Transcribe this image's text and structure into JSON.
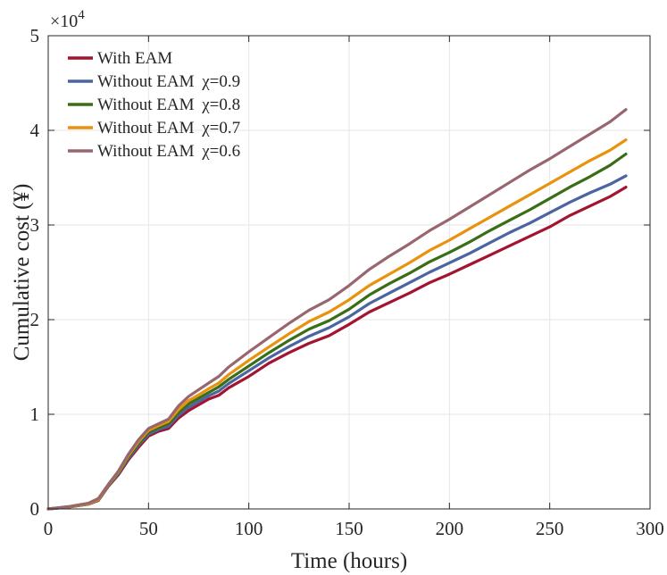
{
  "chart_data": {
    "type": "line",
    "title": "",
    "xlabel": "Time (hours)",
    "ylabel": "Cumulative cost (¥)",
    "xlim": [
      0,
      300
    ],
    "ylim": [
      0,
      50000
    ],
    "xticks": [
      0,
      50,
      100,
      150,
      200,
      250,
      300
    ],
    "xtick_labels": [
      "0",
      "50",
      "100",
      "150",
      "200",
      "250",
      "300"
    ],
    "yticks": [
      0,
      10000,
      20000,
      30000,
      40000,
      50000
    ],
    "ytick_labels": [
      "0",
      "1",
      "2",
      "3",
      "4",
      "5"
    ],
    "y_exponent_label": "×10",
    "y_exponent_power": "4",
    "grid": true,
    "legend_position": "top-left",
    "series": [
      {
        "name": "With EAM",
        "legend_prefix": "With EAM",
        "legend_chi": "",
        "color": "#A2142F",
        "x": [
          0,
          10,
          20,
          25,
          30,
          35,
          40,
          45,
          50,
          55,
          60,
          65,
          70,
          75,
          80,
          85,
          90,
          100,
          110,
          120,
          130,
          140,
          150,
          160,
          170,
          180,
          190,
          200,
          210,
          220,
          230,
          240,
          250,
          260,
          270,
          280,
          288
        ],
        "y": [
          0,
          200,
          500,
          900,
          2400,
          3600,
          5200,
          6500,
          7700,
          8200,
          8500,
          9600,
          10400,
          11000,
          11600,
          12000,
          12800,
          14000,
          15400,
          16500,
          17500,
          18300,
          19500,
          20800,
          21800,
          22800,
          23900,
          24800,
          25800,
          26800,
          27800,
          28800,
          29800,
          31000,
          32000,
          33000,
          34000
        ]
      },
      {
        "name": "Without EAM χ=0.9",
        "legend_prefix": "Without EAM ",
        "legend_chi": "χ=0.9",
        "color": "#4A65A0",
        "x": [
          0,
          10,
          20,
          25,
          30,
          35,
          40,
          45,
          50,
          55,
          60,
          65,
          70,
          75,
          80,
          85,
          90,
          100,
          110,
          120,
          130,
          140,
          150,
          160,
          170,
          180,
          190,
          200,
          210,
          220,
          230,
          240,
          250,
          260,
          270,
          280,
          288
        ],
        "y": [
          0,
          200,
          500,
          950,
          2450,
          3700,
          5350,
          6700,
          7900,
          8400,
          8750,
          9900,
          10750,
          11350,
          11950,
          12450,
          13250,
          14600,
          15950,
          17150,
          18250,
          19150,
          20300,
          21700,
          22800,
          23900,
          25000,
          26000,
          27000,
          28100,
          29200,
          30200,
          31300,
          32400,
          33400,
          34300,
          35200
        ]
      },
      {
        "name": "Without EAM χ=0.8",
        "legend_prefix": "Without EAM ",
        "legend_chi": "χ=0.8",
        "color": "#3A6E15",
        "x": [
          0,
          10,
          20,
          25,
          30,
          35,
          40,
          45,
          50,
          55,
          60,
          65,
          70,
          75,
          80,
          85,
          90,
          100,
          110,
          120,
          130,
          140,
          150,
          160,
          170,
          180,
          190,
          200,
          210,
          220,
          230,
          240,
          250,
          260,
          270,
          280,
          288
        ],
        "y": [
          0,
          200,
          520,
          980,
          2500,
          3800,
          5500,
          6900,
          8100,
          8600,
          9000,
          10200,
          11100,
          11700,
          12300,
          12900,
          13700,
          15100,
          16500,
          17800,
          19000,
          19900,
          21100,
          22600,
          23800,
          24900,
          26100,
          27100,
          28200,
          29400,
          30500,
          31600,
          32800,
          34000,
          35100,
          36300,
          37500
        ]
      },
      {
        "name": "Without EAM χ=0.7",
        "legend_prefix": "Without EAM ",
        "legend_chi": "χ=0.7",
        "color": "#E8920E",
        "x": [
          0,
          10,
          20,
          25,
          30,
          35,
          40,
          45,
          50,
          55,
          60,
          65,
          70,
          75,
          80,
          85,
          90,
          100,
          110,
          120,
          130,
          140,
          150,
          160,
          170,
          180,
          190,
          200,
          210,
          220,
          230,
          240,
          250,
          260,
          270,
          280,
          288
        ],
        "y": [
          0,
          220,
          540,
          1000,
          2550,
          3900,
          5650,
          7100,
          8300,
          8800,
          9250,
          10500,
          11450,
          12050,
          12700,
          13300,
          14200,
          15700,
          17100,
          18500,
          19800,
          20800,
          22100,
          23600,
          24800,
          26000,
          27300,
          28400,
          29600,
          30800,
          32000,
          33200,
          34400,
          35600,
          36800,
          37900,
          39000
        ]
      },
      {
        "name": "Without EAM χ=0.6",
        "legend_prefix": "Without EAM ",
        "legend_chi": "χ=0.6",
        "color": "#98666F",
        "x": [
          0,
          10,
          20,
          25,
          30,
          35,
          40,
          45,
          50,
          55,
          60,
          65,
          70,
          75,
          80,
          85,
          90,
          100,
          110,
          120,
          130,
          140,
          150,
          160,
          170,
          180,
          190,
          200,
          210,
          220,
          230,
          240,
          250,
          260,
          270,
          280,
          288
        ],
        "y": [
          0,
          250,
          600,
          1100,
          2600,
          4000,
          5800,
          7300,
          8500,
          9000,
          9500,
          10900,
          11900,
          12600,
          13300,
          14000,
          15000,
          16600,
          18100,
          19600,
          21000,
          22100,
          23600,
          25300,
          26700,
          28000,
          29400,
          30600,
          31900,
          33200,
          34500,
          35800,
          37000,
          38300,
          39600,
          40900,
          42200
        ]
      }
    ]
  }
}
